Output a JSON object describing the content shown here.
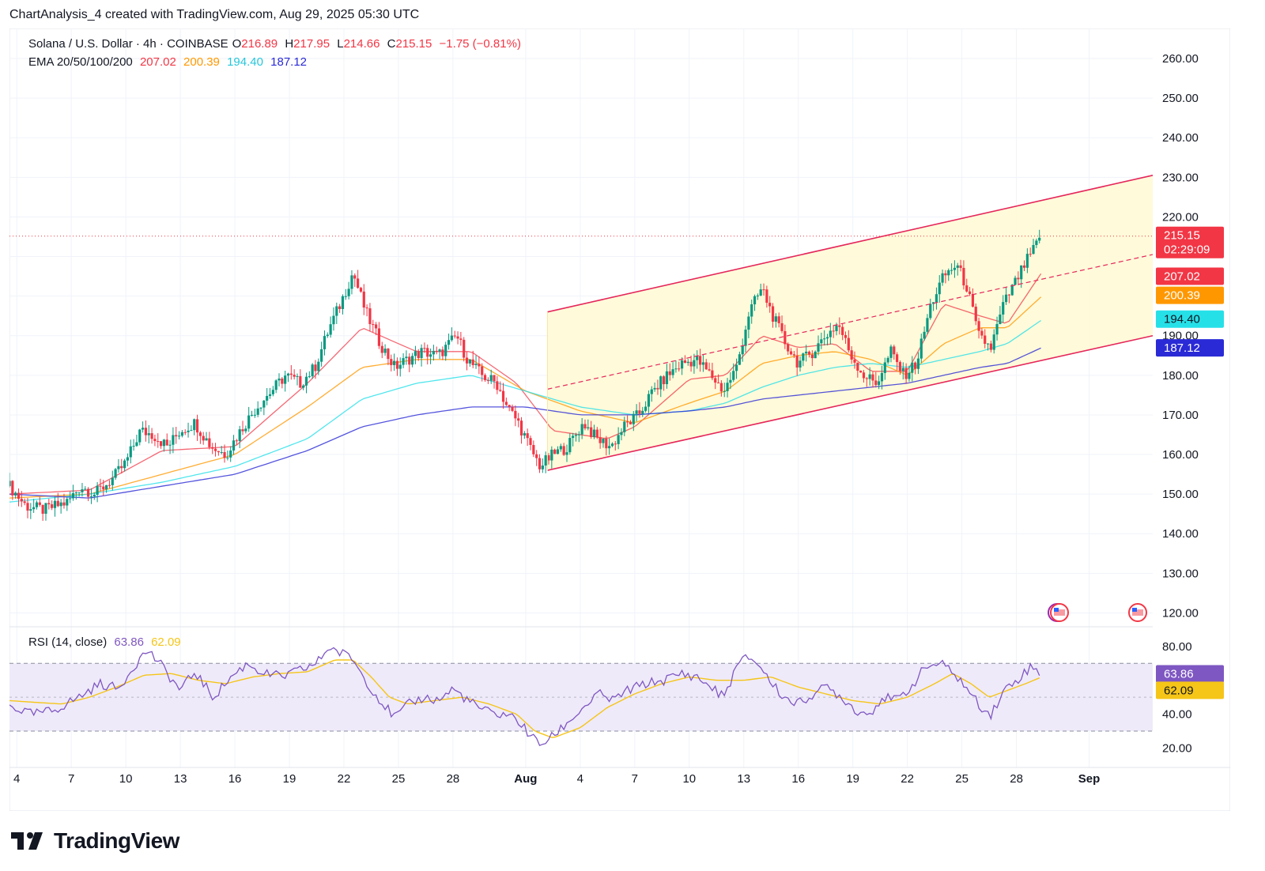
{
  "header": {
    "title": "ChartAnalysis_4 created with TradingView.com, Aug 29, 2025 05:30 UTC"
  },
  "legend": {
    "symbol": "Solana / U.S. Dollar · 4h · COINBASE",
    "open_label": "O",
    "open": "216.89",
    "high_label": "H",
    "high": "217.95",
    "low_label": "L",
    "low": "214.66",
    "close_label": "C",
    "close": "215.15",
    "change": "−1.75 (−0.81%)",
    "ema_label": "EMA 20/50/100/200",
    "ema20": "207.02",
    "ema50": "200.39",
    "ema100": "194.40",
    "ema200": "187.12"
  },
  "rsi_legend": {
    "label": "RSI (14, close)",
    "value": "63.86",
    "ma": "62.09"
  },
  "colors": {
    "up": "#089981",
    "down": "#f23645",
    "ema20": "#f23645",
    "ema50": "#ff9800",
    "ema100": "#26e0e8",
    "ema200": "#2a2ad6",
    "channel": "#e5275b",
    "channel_fill": "#fff9d6",
    "rsi": "#7e57c2",
    "rsi_ma": "#f5c518",
    "rsi_band": "#efeaf9"
  },
  "footer": {
    "logo_text": "TradingView"
  },
  "chart_data": {
    "type": "candlestick",
    "title": "Solana / U.S. Dollar · 4h · COINBASE",
    "price_axis": {
      "ticks": [
        "260.00",
        "250.00",
        "240.00",
        "230.00",
        "220.00",
        "190.00",
        "180.00",
        "170.00",
        "160.00",
        "150.00",
        "140.00",
        "130.00",
        "120.00"
      ],
      "range": [
        112,
        264
      ]
    },
    "rsi_axis": {
      "ticks": [
        "80.00",
        "40.00",
        "20.00"
      ],
      "range": [
        16,
        86
      ],
      "upper_band": 70,
      "lower_band": 30
    },
    "x_ticks": [
      {
        "label": "4",
        "day": 4
      },
      {
        "label": "7",
        "day": 7
      },
      {
        "label": "10",
        "day": 10
      },
      {
        "label": "13",
        "day": 13
      },
      {
        "label": "16",
        "day": 16
      },
      {
        "label": "19",
        "day": 19
      },
      {
        "label": "22",
        "day": 22
      },
      {
        "label": "25",
        "day": 25
      },
      {
        "label": "28",
        "day": 28
      },
      {
        "label": "Aug",
        "day": 32
      },
      {
        "label": "4",
        "day": 35
      },
      {
        "label": "7",
        "day": 38
      },
      {
        "label": "10",
        "day": 41
      },
      {
        "label": "13",
        "day": 44
      },
      {
        "label": "16",
        "day": 47
      },
      {
        "label": "19",
        "day": 50
      },
      {
        "label": "22",
        "day": 53
      },
      {
        "label": "25",
        "day": 56
      },
      {
        "label": "28",
        "day": 59
      },
      {
        "label": "Sep",
        "day": 63
      }
    ],
    "x_range_days": [
      3.6,
      66.5
    ],
    "price_anchors": [
      [
        3.6,
        152
      ],
      [
        4.5,
        147
      ],
      [
        5.5,
        146
      ],
      [
        6.8,
        148
      ],
      [
        7.5,
        152
      ],
      [
        8.3,
        150
      ],
      [
        9.3,
        154
      ],
      [
        10,
        158
      ],
      [
        10.8,
        166
      ],
      [
        11.5,
        165
      ],
      [
        12.3,
        162
      ],
      [
        13,
        166
      ],
      [
        13.8,
        168
      ],
      [
        14.7,
        162
      ],
      [
        15.5,
        160
      ],
      [
        16.3,
        166
      ],
      [
        17.2,
        172
      ],
      [
        18,
        176
      ],
      [
        18.8,
        180
      ],
      [
        19.6,
        178
      ],
      [
        20.4,
        182
      ],
      [
        21.2,
        192
      ],
      [
        21.8,
        198
      ],
      [
        22.5,
        206
      ],
      [
        23.2,
        196
      ],
      [
        24,
        188
      ],
      [
        24.8,
        182
      ],
      [
        25.5,
        184
      ],
      [
        26.3,
        186
      ],
      [
        27.2,
        185
      ],
      [
        28.2,
        190
      ],
      [
        28.8,
        184
      ],
      [
        29.6,
        180
      ],
      [
        30.4,
        178
      ],
      [
        31,
        172
      ],
      [
        31.6,
        168
      ],
      [
        32.2,
        162
      ],
      [
        32.8,
        157
      ],
      [
        33.5,
        160
      ],
      [
        34.3,
        162
      ],
      [
        35.2,
        168
      ],
      [
        35.9,
        164
      ],
      [
        36.7,
        162
      ],
      [
        37.4,
        167
      ],
      [
        38.2,
        170
      ],
      [
        39,
        176
      ],
      [
        39.8,
        180
      ],
      [
        40.6,
        183
      ],
      [
        41.4,
        184
      ],
      [
        42.2,
        180
      ],
      [
        42.9,
        176
      ],
      [
        43.6,
        182
      ],
      [
        44.3,
        196
      ],
      [
        45,
        202
      ],
      [
        45.6,
        195
      ],
      [
        46.3,
        188
      ],
      [
        47,
        183
      ],
      [
        47.8,
        186
      ],
      [
        48.5,
        190
      ],
      [
        49.2,
        193
      ],
      [
        49.9,
        185
      ],
      [
        50.6,
        180
      ],
      [
        51.3,
        178
      ],
      [
        52.1,
        186
      ],
      [
        52.8,
        180
      ],
      [
        53.5,
        183
      ],
      [
        54.3,
        198
      ],
      [
        55,
        205
      ],
      [
        55.7,
        208
      ],
      [
        56.3,
        202
      ],
      [
        56.9,
        190
      ],
      [
        57.6,
        187
      ],
      [
        58.3,
        198
      ],
      [
        59,
        204
      ],
      [
        59.7,
        210
      ],
      [
        60.4,
        215
      ]
    ],
    "ema_series": [
      {
        "name": "EMA 20",
        "last": 207.02,
        "anchors": [
          [
            3.6,
            150
          ],
          [
            8,
            151
          ],
          [
            12,
            161
          ],
          [
            16,
            162
          ],
          [
            20,
            178
          ],
          [
            23,
            192
          ],
          [
            26,
            186
          ],
          [
            29,
            186
          ],
          [
            31.5,
            178
          ],
          [
            33.5,
            166
          ],
          [
            36.5,
            164
          ],
          [
            38,
            167
          ],
          [
            41,
            179
          ],
          [
            43,
            180
          ],
          [
            45,
            190
          ],
          [
            47,
            187
          ],
          [
            49,
            188
          ],
          [
            51,
            181
          ],
          [
            53,
            181
          ],
          [
            55,
            198
          ],
          [
            57,
            195
          ],
          [
            58.5,
            193
          ],
          [
            60.4,
            206
          ]
        ]
      },
      {
        "name": "EMA 50",
        "last": 200.39,
        "anchors": [
          [
            3.6,
            149
          ],
          [
            8,
            150
          ],
          [
            12,
            155
          ],
          [
            16,
            160
          ],
          [
            20,
            172
          ],
          [
            23,
            182
          ],
          [
            26,
            184
          ],
          [
            29,
            184
          ],
          [
            32,
            176
          ],
          [
            35,
            171
          ],
          [
            38,
            168
          ],
          [
            41,
            173
          ],
          [
            43,
            176
          ],
          [
            45,
            183
          ],
          [
            47,
            185
          ],
          [
            49,
            186
          ],
          [
            51,
            184
          ],
          [
            53,
            180
          ],
          [
            55,
            188
          ],
          [
            57,
            192
          ],
          [
            58.5,
            192
          ],
          [
            60.4,
            200
          ]
        ]
      },
      {
        "name": "EMA 100",
        "last": 194.4,
        "anchors": [
          [
            3.6,
            148
          ],
          [
            8,
            150
          ],
          [
            12,
            153
          ],
          [
            16,
            157
          ],
          [
            20,
            164
          ],
          [
            23,
            174
          ],
          [
            26,
            178
          ],
          [
            29,
            180
          ],
          [
            32,
            176
          ],
          [
            35,
            172
          ],
          [
            38,
            170
          ],
          [
            41,
            171
          ],
          [
            43,
            173
          ],
          [
            45,
            177
          ],
          [
            47,
            180
          ],
          [
            49,
            182
          ],
          [
            51,
            183
          ],
          [
            53,
            182
          ],
          [
            55,
            184
          ],
          [
            57,
            186
          ],
          [
            58.5,
            188
          ],
          [
            60.4,
            194
          ]
        ]
      },
      {
        "name": "EMA 200",
        "last": 187.12,
        "anchors": [
          [
            3.6,
            150
          ],
          [
            8,
            149
          ],
          [
            12,
            152
          ],
          [
            16,
            155
          ],
          [
            20,
            161
          ],
          [
            23,
            167
          ],
          [
            26,
            170
          ],
          [
            29,
            172
          ],
          [
            32,
            172
          ],
          [
            35,
            170
          ],
          [
            38,
            170
          ],
          [
            41,
            171
          ],
          [
            43,
            172
          ],
          [
            45,
            174
          ],
          [
            47,
            175
          ],
          [
            49,
            176
          ],
          [
            51,
            177
          ],
          [
            53,
            178
          ],
          [
            55,
            180
          ],
          [
            57,
            182
          ],
          [
            58.5,
            183
          ],
          [
            60.4,
            187
          ]
        ]
      }
    ],
    "channel": {
      "upper": [
        [
          33.2,
          196
        ],
        [
          66.5,
          230.5
        ]
      ],
      "lower": [
        [
          33.2,
          156
        ],
        [
          66.5,
          190
        ]
      ],
      "mid": [
        [
          33.2,
          176.5
        ],
        [
          66.5,
          210.5
        ]
      ]
    },
    "rsi_anchors": [
      [
        3.6,
        45
      ],
      [
        4.8,
        40
      ],
      [
        6,
        42
      ],
      [
        7.4,
        50
      ],
      [
        8.6,
        58
      ],
      [
        9.6,
        55
      ],
      [
        10.4,
        68
      ],
      [
        11.2,
        78
      ],
      [
        12,
        68
      ],
      [
        13,
        54
      ],
      [
        13.8,
        65
      ],
      [
        14.8,
        50
      ],
      [
        15.8,
        62
      ],
      [
        16.7,
        70
      ],
      [
        17.6,
        64
      ],
      [
        18.6,
        62
      ],
      [
        19.6,
        66
      ],
      [
        20.5,
        70
      ],
      [
        21.2,
        80
      ],
      [
        21.8,
        76
      ],
      [
        22.4,
        74
      ],
      [
        23.2,
        60
      ],
      [
        24,
        48
      ],
      [
        24.8,
        38
      ],
      [
        25.6,
        46
      ],
      [
        26.4,
        50
      ],
      [
        27.2,
        48
      ],
      [
        28,
        55
      ],
      [
        28.6,
        50
      ],
      [
        29.4,
        44
      ],
      [
        30.2,
        40
      ],
      [
        31,
        40
      ],
      [
        31.6,
        36
      ],
      [
        32.2,
        28
      ],
      [
        32.8,
        22
      ],
      [
        33.4,
        26
      ],
      [
        34.2,
        34
      ],
      [
        35.2,
        44
      ],
      [
        36,
        52
      ],
      [
        36.8,
        48
      ],
      [
        37.6,
        54
      ],
      [
        38.6,
        58
      ],
      [
        39.6,
        60
      ],
      [
        40.6,
        64
      ],
      [
        41.4,
        62
      ],
      [
        42.2,
        56
      ],
      [
        42.9,
        50
      ],
      [
        43.6,
        68
      ],
      [
        44.2,
        74
      ],
      [
        44.8,
        70
      ],
      [
        45.4,
        60
      ],
      [
        46.2,
        50
      ],
      [
        47,
        46
      ],
      [
        47.8,
        52
      ],
      [
        48.6,
        56
      ],
      [
        49.4,
        50
      ],
      [
        50.2,
        42
      ],
      [
        50.9,
        40
      ],
      [
        51.6,
        50
      ],
      [
        52.4,
        48
      ],
      [
        53.2,
        56
      ],
      [
        54,
        68
      ],
      [
        54.8,
        70
      ],
      [
        55.6,
        64
      ],
      [
        56.2,
        56
      ],
      [
        56.9,
        46
      ],
      [
        57.6,
        40
      ],
      [
        58.4,
        55
      ],
      [
        59.2,
        62
      ],
      [
        59.8,
        68
      ],
      [
        60.4,
        64
      ]
    ],
    "rsi_ma_anchors": [
      [
        3.6,
        48
      ],
      [
        5,
        47
      ],
      [
        6.5,
        46
      ],
      [
        8,
        50
      ],
      [
        9.5,
        56
      ],
      [
        11,
        63
      ],
      [
        12.5,
        64
      ],
      [
        14,
        60
      ],
      [
        15.5,
        58
      ],
      [
        17,
        62
      ],
      [
        18.5,
        64
      ],
      [
        20,
        65
      ],
      [
        21.5,
        72
      ],
      [
        22.5,
        72
      ],
      [
        23.5,
        62
      ],
      [
        24.5,
        50
      ],
      [
        25.5,
        46
      ],
      [
        27,
        48
      ],
      [
        28.5,
        50
      ],
      [
        30,
        46
      ],
      [
        31.5,
        40
      ],
      [
        32.5,
        30
      ],
      [
        33.5,
        26
      ],
      [
        35,
        32
      ],
      [
        36.5,
        44
      ],
      [
        38,
        52
      ],
      [
        39.5,
        58
      ],
      [
        41,
        62
      ],
      [
        42.5,
        60
      ],
      [
        44,
        60
      ],
      [
        45.5,
        62
      ],
      [
        47,
        56
      ],
      [
        48.5,
        52
      ],
      [
        50,
        48
      ],
      [
        51.5,
        46
      ],
      [
        53,
        50
      ],
      [
        54.5,
        58
      ],
      [
        55.5,
        64
      ],
      [
        56.5,
        58
      ],
      [
        57.5,
        50
      ],
      [
        58.5,
        54
      ],
      [
        59.5,
        58
      ],
      [
        60.4,
        62
      ]
    ]
  }
}
